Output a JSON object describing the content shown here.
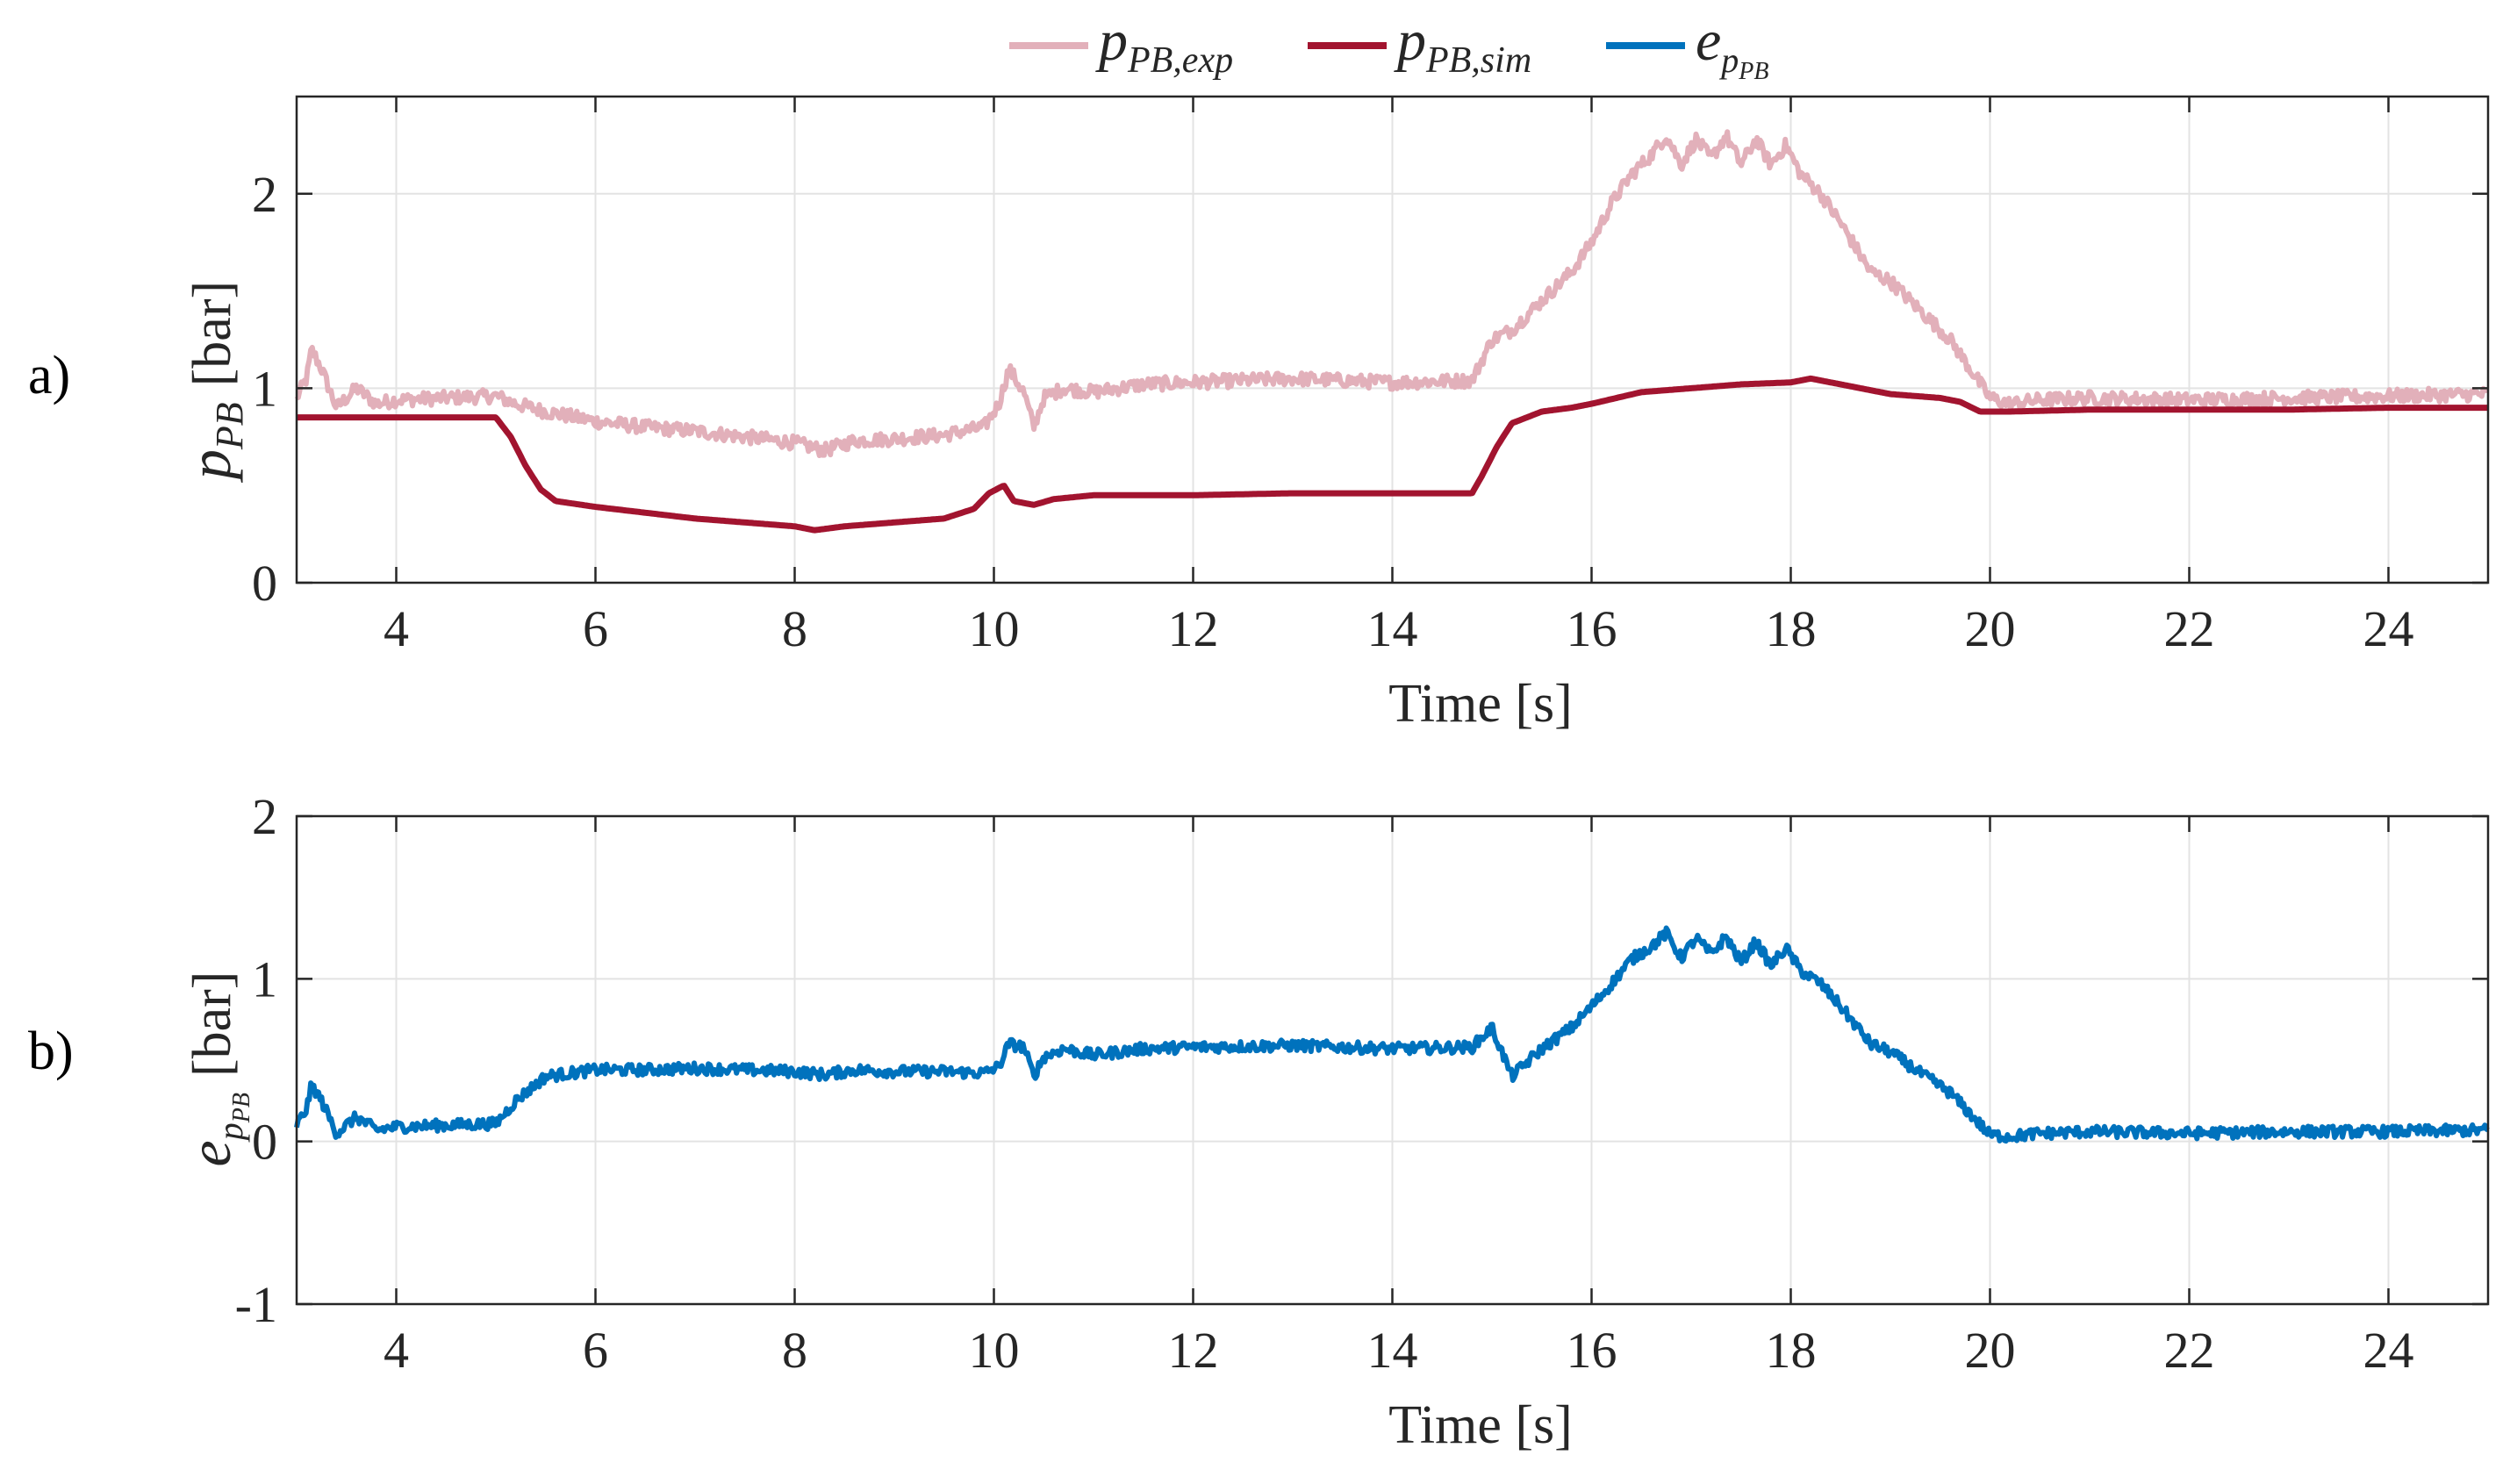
{
  "legend": {
    "entries": [
      {
        "base": "p",
        "sub": "PB,exp",
        "color": "#E2B0BA"
      },
      {
        "base": "p",
        "sub": "PB,sim",
        "color": "#A2142F"
      },
      {
        "base": "e",
        "sub": "p",
        "subsub": "PB",
        "color": "#0072BD"
      }
    ]
  },
  "chart_data": [
    {
      "panel_label": "a)",
      "type": "line",
      "xlabel": "Time [s]",
      "ylabel": {
        "base": "p",
        "sub": "PB",
        "unit": "[bar]"
      },
      "xlim": [
        3,
        25
      ],
      "ylim": [
        0,
        2.5
      ],
      "xticks": [
        "4",
        "6",
        "8",
        "10",
        "12",
        "14",
        "16",
        "18",
        "20",
        "22",
        "24"
      ],
      "xtick_values": [
        4,
        6,
        8,
        10,
        12,
        14,
        16,
        18,
        20,
        22,
        24
      ],
      "yticks": [
        "0",
        "1",
        "2"
      ],
      "ytick_values": [
        0,
        1,
        2
      ],
      "grid": true,
      "series": [
        {
          "name": "p_PB,exp",
          "color": "#E2B0BA",
          "noise": 0.035,
          "t": [
            3.0,
            3.1,
            3.15,
            3.25,
            3.4,
            3.6,
            3.8,
            4.0,
            4.5,
            5.0,
            5.2,
            5.5,
            6.0,
            6.5,
            7.0,
            7.5,
            8.0,
            8.3,
            8.6,
            9.0,
            9.5,
            9.9,
            10.05,
            10.15,
            10.3,
            10.4,
            10.5,
            10.7,
            11.0,
            11.5,
            12.0,
            13.0,
            14.0,
            14.8,
            15.0,
            15.2,
            15.5,
            15.8,
            16.0,
            16.2,
            16.4,
            16.6,
            16.75,
            16.9,
            17.05,
            17.2,
            17.35,
            17.5,
            17.65,
            17.8,
            17.95,
            18.1,
            18.3,
            18.5,
            18.8,
            19.0,
            19.3,
            19.6,
            19.8,
            20.0,
            20.2,
            20.5,
            21.0,
            22.0,
            23.0,
            24.0,
            25.0
          ],
          "v": [
            0.95,
            1.05,
            1.2,
            1.1,
            0.9,
            1.0,
            0.92,
            0.94,
            0.95,
            0.96,
            0.92,
            0.88,
            0.83,
            0.8,
            0.78,
            0.75,
            0.72,
            0.68,
            0.73,
            0.74,
            0.76,
            0.8,
            0.92,
            1.1,
            0.98,
            0.8,
            0.95,
            1.0,
            0.98,
            1.02,
            1.03,
            1.05,
            1.03,
            1.04,
            1.25,
            1.3,
            1.45,
            1.6,
            1.75,
            1.95,
            2.1,
            2.2,
            2.3,
            2.15,
            2.28,
            2.18,
            2.3,
            2.15,
            2.28,
            2.15,
            2.25,
            2.1,
            2.0,
            1.85,
            1.6,
            1.55,
            1.4,
            1.25,
            1.1,
            0.95,
            0.92,
            0.94,
            0.95,
            0.94,
            0.95,
            0.96,
            0.97
          ]
        },
        {
          "name": "p_PB,sim",
          "color": "#A2142F",
          "noise": 0,
          "t": [
            3.0,
            4.5,
            5.0,
            5.15,
            5.3,
            5.45,
            5.6,
            6.0,
            6.5,
            7.0,
            7.5,
            8.0,
            8.2,
            8.5,
            9.0,
            9.5,
            9.8,
            9.95,
            10.1,
            10.2,
            10.4,
            10.6,
            11.0,
            12.0,
            13.0,
            14.0,
            14.8,
            14.9,
            15.05,
            15.2,
            15.5,
            15.8,
            16.0,
            16.5,
            17.0,
            17.5,
            18.0,
            18.2,
            18.5,
            19.0,
            19.5,
            19.7,
            19.9,
            20.0,
            20.2,
            21.0,
            22.0,
            23.0,
            24.0,
            25.0
          ],
          "v": [
            0.85,
            0.85,
            0.85,
            0.75,
            0.6,
            0.48,
            0.42,
            0.39,
            0.36,
            0.33,
            0.31,
            0.29,
            0.27,
            0.29,
            0.31,
            0.33,
            0.38,
            0.46,
            0.5,
            0.42,
            0.4,
            0.43,
            0.45,
            0.45,
            0.46,
            0.46,
            0.46,
            0.55,
            0.7,
            0.82,
            0.88,
            0.9,
            0.92,
            0.98,
            1.0,
            1.02,
            1.03,
            1.05,
            1.02,
            0.97,
            0.95,
            0.93,
            0.88,
            0.88,
            0.88,
            0.89,
            0.89,
            0.89,
            0.9,
            0.9
          ]
        }
      ]
    },
    {
      "panel_label": "b)",
      "type": "line",
      "xlabel": "Time [s]",
      "ylabel": {
        "base": "e",
        "sub": "p",
        "subsub": "PB",
        "unit": "[bar]"
      },
      "xlim": [
        3,
        25
      ],
      "ylim": [
        -1,
        2
      ],
      "xticks": [
        "4",
        "6",
        "8",
        "10",
        "12",
        "14",
        "16",
        "18",
        "20",
        "22",
        "24"
      ],
      "xtick_values": [
        4,
        6,
        8,
        10,
        12,
        14,
        16,
        18,
        20,
        22,
        24
      ],
      "yticks": [
        "-1",
        "0",
        "1",
        "2"
      ],
      "ytick_values": [
        -1,
        0,
        1,
        2
      ],
      "grid": true,
      "series": [
        {
          "name": "e_pPB",
          "color": "#0072BD",
          "noise": 0.035,
          "t": [
            3.0,
            3.1,
            3.15,
            3.25,
            3.4,
            3.6,
            3.8,
            4.0,
            4.5,
            5.0,
            5.2,
            5.5,
            6.0,
            6.5,
            7.0,
            7.5,
            8.0,
            8.3,
            8.6,
            9.0,
            9.5,
            9.9,
            10.05,
            10.15,
            10.3,
            10.4,
            10.5,
            10.7,
            11.0,
            11.5,
            12.0,
            13.0,
            14.0,
            14.8,
            15.0,
            15.2,
            15.5,
            15.8,
            16.0,
            16.2,
            16.4,
            16.6,
            16.75,
            16.9,
            17.05,
            17.2,
            17.35,
            17.5,
            17.65,
            17.8,
            17.95,
            18.1,
            18.3,
            18.5,
            18.8,
            19.0,
            19.3,
            19.6,
            19.8,
            20.0,
            20.2,
            20.5,
            21.0,
            22.0,
            23.0,
            24.0,
            25.0
          ],
          "v": [
            0.1,
            0.2,
            0.35,
            0.25,
            0.05,
            0.15,
            0.07,
            0.09,
            0.1,
            0.11,
            0.25,
            0.4,
            0.44,
            0.44,
            0.45,
            0.44,
            0.43,
            0.41,
            0.44,
            0.43,
            0.43,
            0.42,
            0.46,
            0.6,
            0.58,
            0.4,
            0.52,
            0.57,
            0.53,
            0.57,
            0.58,
            0.59,
            0.57,
            0.58,
            0.7,
            0.4,
            0.57,
            0.7,
            0.83,
            0.97,
            1.12,
            1.2,
            1.28,
            1.13,
            1.25,
            1.15,
            1.26,
            1.1,
            1.23,
            1.08,
            1.19,
            1.05,
            0.97,
            0.83,
            0.6,
            0.55,
            0.42,
            0.3,
            0.17,
            0.04,
            0.03,
            0.05,
            0.06,
            0.05,
            0.06,
            0.06,
            0.07
          ]
        }
      ]
    }
  ]
}
